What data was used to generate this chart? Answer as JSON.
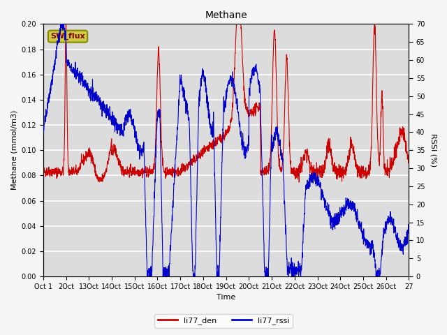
{
  "title": "Methane",
  "xlabel": "Time",
  "ylabel_left": "Methane (mmol/m3)",
  "ylabel_right": "RSSI (%)",
  "xlim": [
    0,
    16
  ],
  "ylim_left": [
    0.0,
    0.2
  ],
  "ylim_right": [
    0,
    70
  ],
  "yticks_left": [
    0.0,
    0.02,
    0.04,
    0.06,
    0.08,
    0.1,
    0.12,
    0.14,
    0.16,
    0.18,
    0.2
  ],
  "yticks_right": [
    0,
    5,
    10,
    15,
    20,
    25,
    30,
    35,
    40,
    45,
    50,
    55,
    60,
    65,
    70
  ],
  "xtick_labels": [
    "Oct 1",
    "2Oct",
    "13Oct",
    "14Oct",
    "15Oct",
    "16Oct",
    "17Oct",
    "18Oct",
    "19Oct",
    "20Oct",
    "21Oct",
    "22Oct",
    "23Oct",
    "24Oct",
    "25Oct",
    "26Oct",
    "27"
  ],
  "background_color": "#dcdcdc",
  "grid_color": "#ffffff",
  "fig_facecolor": "#f5f5f5",
  "line_color_red": "#cc0000",
  "line_color_blue": "#0000cc",
  "sw_flux_box_facecolor": "#cccc44",
  "sw_flux_box_edgecolor": "#888800",
  "sw_flux_text_color": "#880000",
  "legend_red_label": "li77_den",
  "legend_blue_label": "li77_rssi",
  "title_fontsize": 10,
  "axis_label_fontsize": 8,
  "tick_fontsize": 7,
  "legend_fontsize": 8
}
